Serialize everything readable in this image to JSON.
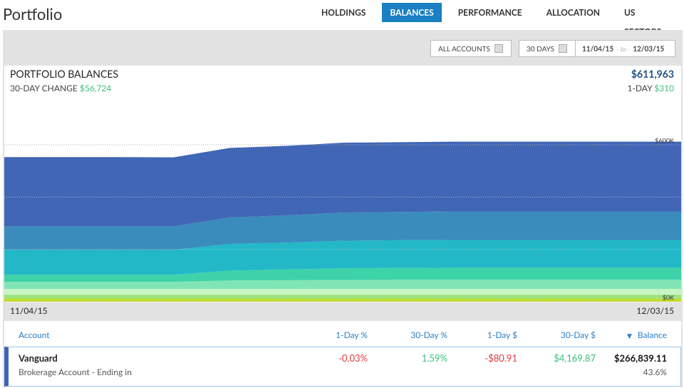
{
  "header": {
    "title": "Portfolio",
    "tabs": [
      "HOLDINGS",
      "BALANCES",
      "PERFORMANCE",
      "ALLOCATION",
      "US SECTORS"
    ],
    "active_tab": 1
  },
  "filters": {
    "account": "ALL ACCOUNTS",
    "range": "30 DAYS",
    "start": "11/04/15",
    "to": "- to -",
    "end": "12/03/15"
  },
  "summary": {
    "title": "PORTFOLIO BALANCES",
    "change_label": "30-DAY CHANGE",
    "change_value": "$56,724",
    "total": "$611,963",
    "day_label": "1-DAY",
    "day_value": "$310"
  },
  "chart_data": {
    "type": "area",
    "stacked": true,
    "categories": [
      "11/04/15",
      null,
      null,
      null,
      null,
      null,
      null,
      null,
      null,
      null,
      null,
      null,
      "12/03/15"
    ],
    "series": [
      {
        "color": "#c4de2c",
        "values": [
          11000,
          11000,
          11000,
          11000,
          11000,
          11000,
          11000,
          11000,
          11000,
          11000,
          11000,
          11000,
          11000
        ]
      },
      {
        "color": "#9fe47c",
        "values": [
          16000,
          16000,
          16000,
          16000,
          16000,
          16000,
          16000,
          16000,
          16000,
          16000,
          16000,
          16000,
          16000
        ]
      },
      {
        "color": "#c6f5c3",
        "values": [
          22000,
          22000,
          22000,
          22000,
          22000,
          22000,
          22000,
          22000,
          22000,
          22000,
          22000,
          22000,
          22000
        ]
      },
      {
        "color": "#80e5b4",
        "values": [
          27000,
          27000,
          27000,
          27000,
          32000,
          33000,
          34000,
          35000,
          35000,
          35000,
          35000,
          35000,
          35000
        ]
      },
      {
        "color": "#3ed2a8",
        "values": [
          27000,
          27000,
          27000,
          27000,
          38000,
          41000,
          45000,
          45000,
          46000,
          46000,
          46000,
          46000,
          46000
        ]
      },
      {
        "color": "#22b8c8",
        "values": [
          95000,
          95000,
          95000,
          95000,
          102000,
          103000,
          105000,
          106000,
          106000,
          106000,
          106000,
          106000,
          106000
        ]
      },
      {
        "color": "#3a8cbd",
        "values": [
          90000,
          90000,
          90000,
          90000,
          101000,
          104000,
          108000,
          108000,
          109000,
          109000,
          109000,
          109000,
          109000
        ]
      },
      {
        "color": "#4166b5",
        "values": [
          265000,
          265000,
          265000,
          264000,
          266000,
          266000,
          267000,
          267000,
          267000,
          267000,
          267000,
          267000,
          267000
        ]
      }
    ],
    "ylim": [
      0,
      600000
    ],
    "yticks": [
      {
        "value": 0,
        "label": "$0K"
      },
      {
        "value": 600000,
        "label": "$600K"
      }
    ],
    "grid_ticks": [
      200000,
      400000
    ],
    "grid": true
  },
  "table": {
    "columns": [
      "Account",
      "1-Day %",
      "30-Day %",
      "1-Day $",
      "30-Day $",
      "Balance"
    ],
    "sort_column": 5,
    "rows": [
      {
        "account": "Vanguard",
        "detail": "Brokerage Account - Ending in",
        "cells": [
          "-0.03%",
          "1.59%",
          "-$80.91",
          "$4,169.87",
          "$266,839.11"
        ],
        "share": "43.6%"
      }
    ]
  }
}
